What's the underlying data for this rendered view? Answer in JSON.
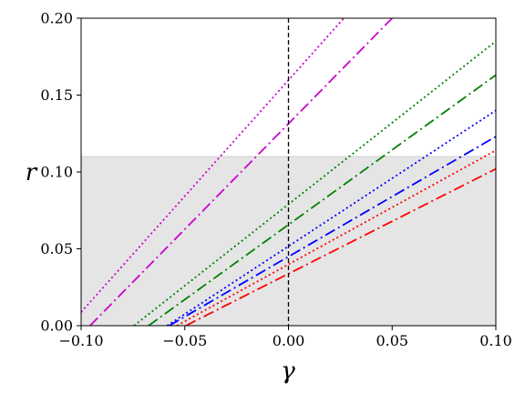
{
  "chart_data": {
    "type": "line",
    "xlabel": "γ",
    "ylabel": "r",
    "xlim": [
      -0.1,
      0.1
    ],
    "ylim": [
      0.0,
      0.2
    ],
    "xticks": [
      "−0.10",
      "−0.05",
      "0.00",
      "0.05",
      "0.10"
    ],
    "yticks": [
      "0.00",
      "0.05",
      "0.10",
      "0.15",
      "0.20"
    ],
    "xtick_values": [
      -0.1,
      -0.05,
      0.0,
      0.05,
      0.1
    ],
    "ytick_values": [
      0.0,
      0.05,
      0.1,
      0.15,
      0.2
    ],
    "grid": false,
    "shaded_region": {
      "y_from": 0.0,
      "y_to": 0.11,
      "color": "#e5e5e5"
    },
    "vertical_reference_line": {
      "x": 0.0,
      "style": "dashed",
      "color": "#000000"
    },
    "series": [
      {
        "color": "#cc00cc",
        "style": "dotted",
        "x": [
          -0.1,
          0.0267
        ],
        "y": [
          0.0088,
          0.2
        ]
      },
      {
        "color": "#cc00cc",
        "style": "dashdot",
        "x": [
          -0.0957,
          0.05
        ],
        "y": [
          0.0,
          0.2
        ]
      },
      {
        "color": "#008000",
        "style": "dotted",
        "x": [
          -0.0745,
          0.1
        ],
        "y": [
          0.0,
          0.185
        ]
      },
      {
        "color": "#008000",
        "style": "dashdot",
        "x": [
          -0.0675,
          0.1
        ],
        "y": [
          0.0,
          0.163
        ]
      },
      {
        "color": "#0000ff",
        "style": "dotted",
        "x": [
          -0.0585,
          0.1
        ],
        "y": [
          0.0,
          0.14
        ]
      },
      {
        "color": "#0000ff",
        "style": "dashdot",
        "x": [
          -0.0575,
          0.1
        ],
        "y": [
          0.0,
          0.123
        ]
      },
      {
        "color": "#ff0000",
        "style": "dotted",
        "x": [
          -0.0538,
          0.1
        ],
        "y": [
          0.0,
          0.114
        ]
      },
      {
        "color": "#ff0000",
        "style": "dashdot",
        "x": [
          -0.0495,
          0.1
        ],
        "y": [
          0.0,
          0.102
        ]
      }
    ]
  }
}
